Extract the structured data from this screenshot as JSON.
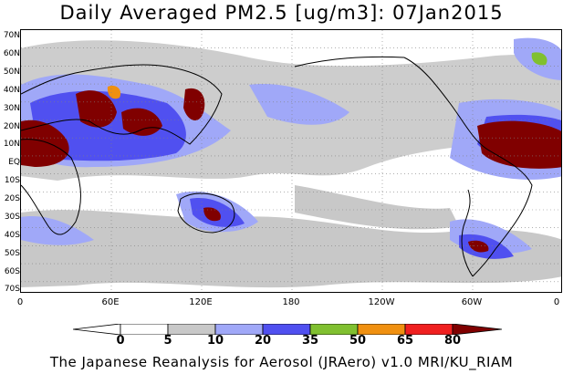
{
  "title": "Daily Averaged PM2.5 [ug/m3]: 07Jan2015",
  "credit": "The Japanese Reanalysis for Aerosol (JRAero) v1.0 MRI/KU_RIAM",
  "lat_labels": [
    "70N",
    "60N",
    "50N",
    "40N",
    "30N",
    "20N",
    "10N",
    "EQ",
    "10S",
    "20S",
    "30S",
    "40S",
    "50S",
    "60S",
    "70S"
  ],
  "lon_labels": [
    "0",
    "60E",
    "120E",
    "180",
    "120W",
    "60W",
    "0"
  ],
  "colorbar": {
    "labels": [
      "0",
      "5",
      "10",
      "20",
      "35",
      "50",
      "65",
      "80"
    ],
    "colors": [
      "#ffffff",
      "#c8c8c8",
      "#a0a8f8",
      "#5050f0",
      "#80c030",
      "#f09010",
      "#f02020",
      "#800000"
    ]
  }
}
